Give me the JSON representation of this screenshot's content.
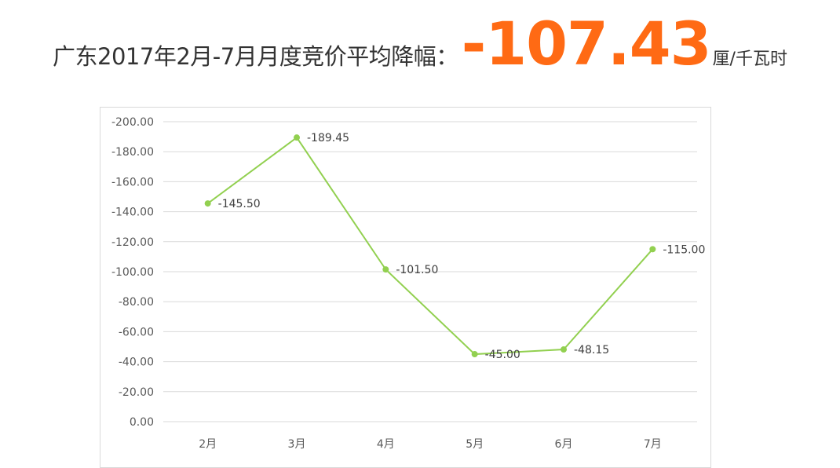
{
  "headline": {
    "prefix": "广东2017年2月-7月月度竞价平均降幅：",
    "value": "-107.43",
    "unit": "厘/千瓦时"
  },
  "colors": {
    "accent": "#ff6a14",
    "series_line": "#92d050",
    "gridline": "#d9d9d9"
  },
  "chart_data": {
    "type": "line",
    "categories": [
      "2月",
      "3月",
      "4月",
      "5月",
      "6月",
      "7月"
    ],
    "series": [
      {
        "values": [
          -145.5,
          -189.45,
          -101.5,
          -45.0,
          -48.15,
          -115.0
        ]
      }
    ],
    "data_labels": [
      "-145.50",
      "-189.45",
      "-101.50",
      "-45.00",
      "-48.15",
      "-115.00"
    ],
    "y_ticks": [
      "0.00",
      "-20.00",
      "-40.00",
      "-60.00",
      "-80.00",
      "-100.00",
      "-120.00",
      "-140.00",
      "-160.00",
      "-180.00",
      "-200.00"
    ],
    "ylim": [
      0,
      -200
    ],
    "y_axis_reversed": true,
    "grid": true,
    "legend": "none",
    "title": "",
    "xlabel": "",
    "ylabel": ""
  }
}
